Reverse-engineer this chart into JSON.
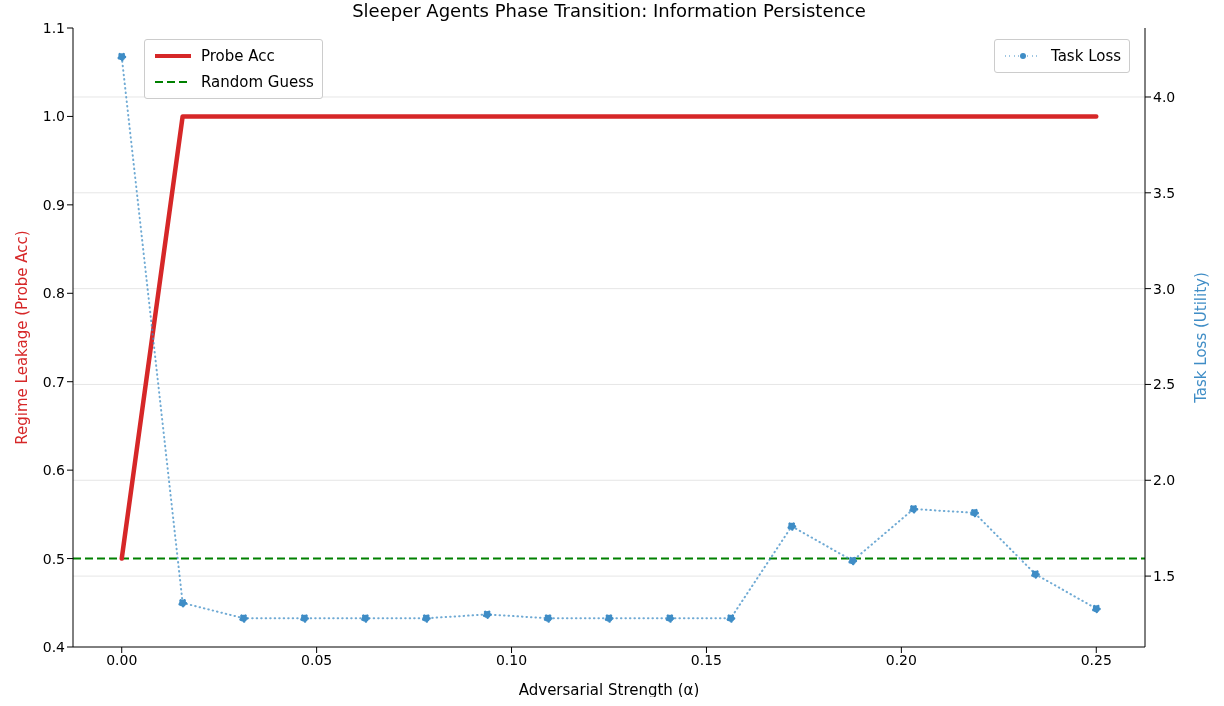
{
  "chart_data": {
    "type": "line",
    "title": "Sleeper Agents Phase Transition: Information Persistence",
    "xlabel": "Adversarial Strength (α)",
    "ylabel": "Regime Leakage (Probe Acc)",
    "y2label": "Task Loss (Utility)",
    "x": [
      0,
      0.015625,
      0.03125,
      0.046875,
      0.0625,
      0.078125,
      0.09375,
      0.109375,
      0.125,
      0.140625,
      0.15625,
      0.171875,
      0.1875,
      0.203125,
      0.21875,
      0.234375,
      0.25
    ],
    "series": [
      {
        "name": "Probe Acc",
        "color": "#d62728",
        "marker": "none",
        "line_style": "solid",
        "values": [
          0.5,
          1,
          1,
          1,
          1,
          1,
          1,
          1,
          1,
          1,
          1,
          1,
          1,
          1,
          1,
          1,
          1
        ]
      },
      {
        "name": "Task Loss",
        "color": "#3f8dc6",
        "axis": "y2",
        "marker": "circle",
        "line_style": "dotted",
        "values": [
          4.21,
          1.36,
          1.28,
          1.28,
          1.28,
          1.28,
          1.3,
          1.28,
          1.28,
          1.28,
          1.28,
          1.76,
          1.58,
          1.85,
          1.83,
          1.51,
          1.33
        ]
      }
    ],
    "ref_lines": [
      {
        "axis": "y",
        "value": 0.5,
        "label": "Random Guess",
        "color": "#008000",
        "line_style": "dashed"
      }
    ],
    "xlim": [
      -0.0125,
      0.2625
    ],
    "xticks": [
      {
        "value": 0,
        "label": "0.00"
      },
      0.05,
      {
        "value": 0.1,
        "label": "0.10"
      },
      0.15,
      {
        "value": 0.2,
        "label": "0.20"
      },
      0.25
    ],
    "ylim": [
      0.4,
      1.1
    ],
    "yticks": [
      0.4,
      0.5,
      0.6,
      0.7,
      0.8,
      0.9,
      {
        "value": 1,
        "label": "1.0"
      },
      1.1
    ],
    "y2lim": [
      1.13,
      4.36
    ],
    "y2ticks": [
      1.5,
      {
        "value": 2,
        "label": "2.0"
      },
      2.5,
      {
        "value": 3,
        "label": "3.0"
      },
      3.5,
      {
        "value": 4,
        "label": "4.0"
      }
    ],
    "grid": "y",
    "legend": "top left"
  }
}
